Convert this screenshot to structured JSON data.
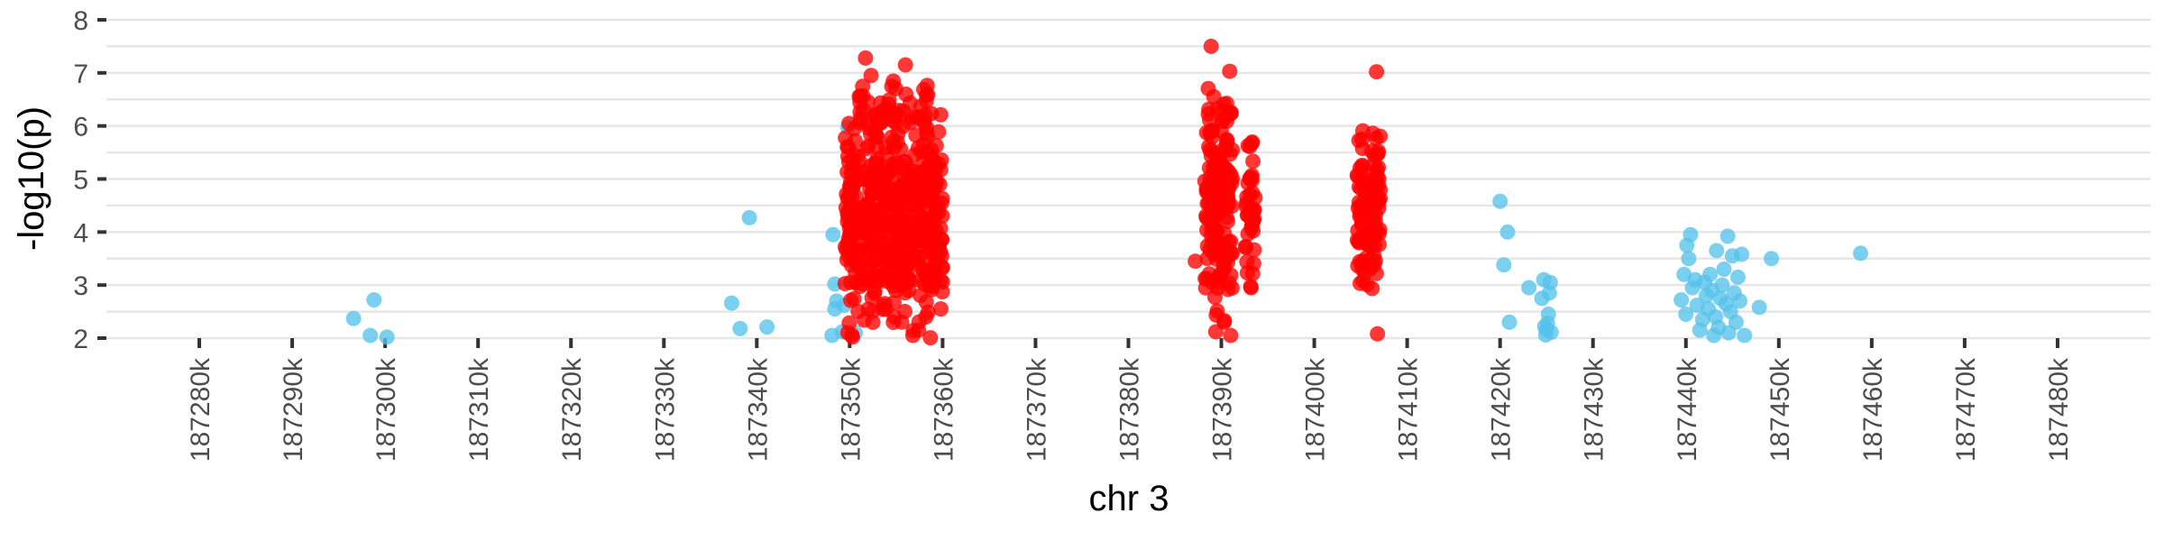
{
  "chart_data": {
    "type": "scatter",
    "xlabel": "chr 3",
    "ylabel": "-log10(p)",
    "xlim": [
      187270000,
      187490000
    ],
    "ylim": [
      2,
      8
    ],
    "x_ticks": [
      187280000,
      187290000,
      187300000,
      187310000,
      187320000,
      187330000,
      187340000,
      187350000,
      187360000,
      187370000,
      187380000,
      187390000,
      187400000,
      187410000,
      187420000,
      187430000,
      187440000,
      187450000,
      187460000,
      187470000,
      187480000
    ],
    "x_tick_labels": [
      "187280k",
      "187290k",
      "187300k",
      "187310k",
      "187320k",
      "187330k",
      "187340k",
      "187350k",
      "187360k",
      "187370k",
      "187380k",
      "187390k",
      "187400k",
      "187410k",
      "187420k",
      "187430k",
      "187440k",
      "187450k",
      "187460k",
      "187470k",
      "187480k"
    ],
    "y_ticks": [
      2,
      3,
      4,
      5,
      6,
      7,
      8
    ],
    "y_tick_labels": [
      "2",
      "3",
      "4",
      "5",
      "6",
      "7",
      "8"
    ],
    "grid": "horizontal",
    "colors": {
      "significant": "#FF0000",
      "other": "#56C1EA"
    },
    "series": [
      {
        "color_key": "other",
        "points": [
          [
            187296600,
            2.37
          ],
          [
            187298400,
            2.05
          ],
          [
            187298800,
            2.72
          ],
          [
            187300200,
            2.02
          ],
          [
            187337300,
            2.66
          ],
          [
            187338200,
            2.18
          ],
          [
            187339200,
            4.27
          ],
          [
            187341100,
            2.21
          ],
          [
            187348100,
            2.05
          ],
          [
            187348200,
            3.95
          ],
          [
            187348400,
            2.55
          ],
          [
            187348400,
            3.02
          ],
          [
            187348600,
            2.7
          ],
          [
            187349200,
            2.12
          ],
          [
            187349400,
            2.62
          ],
          [
            187349800,
            4.35
          ],
          [
            187350000,
            4.15
          ],
          [
            187350200,
            3.7
          ],
          [
            187349800,
            5.98
          ],
          [
            187350600,
            2.1
          ],
          [
            187420000,
            4.58
          ],
          [
            187420400,
            3.38
          ],
          [
            187420800,
            4.0
          ],
          [
            187421000,
            2.3
          ],
          [
            187423100,
            2.95
          ],
          [
            187424500,
            2.75
          ],
          [
            187424700,
            3.1
          ],
          [
            187424800,
            2.22
          ],
          [
            187424900,
            2.06
          ],
          [
            187425000,
            2.16
          ],
          [
            187425100,
            2.28
          ],
          [
            187425200,
            2.45
          ],
          [
            187425300,
            2.85
          ],
          [
            187425400,
            3.05
          ],
          [
            187425500,
            2.11
          ],
          [
            187439500,
            2.72
          ],
          [
            187439800,
            3.2
          ],
          [
            187440000,
            2.45
          ],
          [
            187440100,
            3.75
          ],
          [
            187440300,
            3.5
          ],
          [
            187440500,
            3.95
          ],
          [
            187440700,
            2.95
          ],
          [
            187441000,
            3.1
          ],
          [
            187441200,
            2.62
          ],
          [
            187441500,
            2.15
          ],
          [
            187441800,
            2.35
          ],
          [
            187442000,
            3.05
          ],
          [
            187442200,
            2.8
          ],
          [
            187442400,
            2.55
          ],
          [
            187442600,
            3.2
          ],
          [
            187442800,
            2.9
          ],
          [
            187443000,
            2.05
          ],
          [
            187443200,
            2.4
          ],
          [
            187443300,
            3.65
          ],
          [
            187443500,
            2.2
          ],
          [
            187443700,
            2.75
          ],
          [
            187443900,
            3.0
          ],
          [
            187444100,
            3.3
          ],
          [
            187444300,
            2.65
          ],
          [
            187444500,
            3.92
          ],
          [
            187444600,
            2.1
          ],
          [
            187444800,
            2.5
          ],
          [
            187445000,
            3.55
          ],
          [
            187445200,
            2.85
          ],
          [
            187445400,
            2.3
          ],
          [
            187445600,
            3.15
          ],
          [
            187445800,
            2.7
          ],
          [
            187446000,
            3.58
          ],
          [
            187446300,
            2.05
          ],
          [
            187447900,
            2.58
          ],
          [
            187449200,
            3.5
          ],
          [
            187458800,
            3.6
          ]
        ]
      },
      {
        "color_key": "significant",
        "clusters": [
          {
            "x_min": 187349500,
            "x_max": 187360000,
            "y_min": 2.0,
            "y_max": 6.4,
            "count": 480,
            "seed": 11,
            "mode": 3.9
          },
          {
            "x_min": 187350800,
            "x_max": 187358800,
            "y_min": 5.5,
            "y_max": 7.1,
            "count": 55,
            "seed": 23,
            "mode": 6.2
          },
          {
            "x_min": 187388200,
            "x_max": 187391200,
            "y_min": 2.0,
            "y_max": 6.9,
            "count": 160,
            "seed": 37,
            "mode": 5.0
          },
          {
            "x_min": 187392600,
            "x_max": 187393700,
            "y_min": 2.9,
            "y_max": 5.8,
            "count": 40,
            "seed": 41,
            "mode": 4.3
          },
          {
            "x_min": 187404600,
            "x_max": 187407100,
            "y_min": 2.6,
            "y_max": 6.1,
            "count": 120,
            "seed": 53,
            "mode": 4.9
          }
        ],
        "points": [
          [
            187351700,
            7.28
          ],
          [
            187352300,
            6.95
          ],
          [
            187356000,
            7.15
          ],
          [
            187387200,
            3.45
          ],
          [
            187388900,
            7.5
          ],
          [
            187390900,
            7.03
          ],
          [
            187406700,
            7.02
          ],
          [
            187406800,
            2.08
          ],
          [
            187349800,
            2.1
          ],
          [
            187350300,
            2.02
          ],
          [
            187352500,
            2.3
          ],
          [
            187356800,
            2.05
          ],
          [
            187357400,
            2.15
          ],
          [
            187389400,
            2.12
          ],
          [
            187391000,
            2.05
          ],
          [
            187393200,
            2.95
          ],
          [
            187390300,
            2.3
          ],
          [
            187389700,
            3.05
          ]
        ]
      }
    ]
  }
}
